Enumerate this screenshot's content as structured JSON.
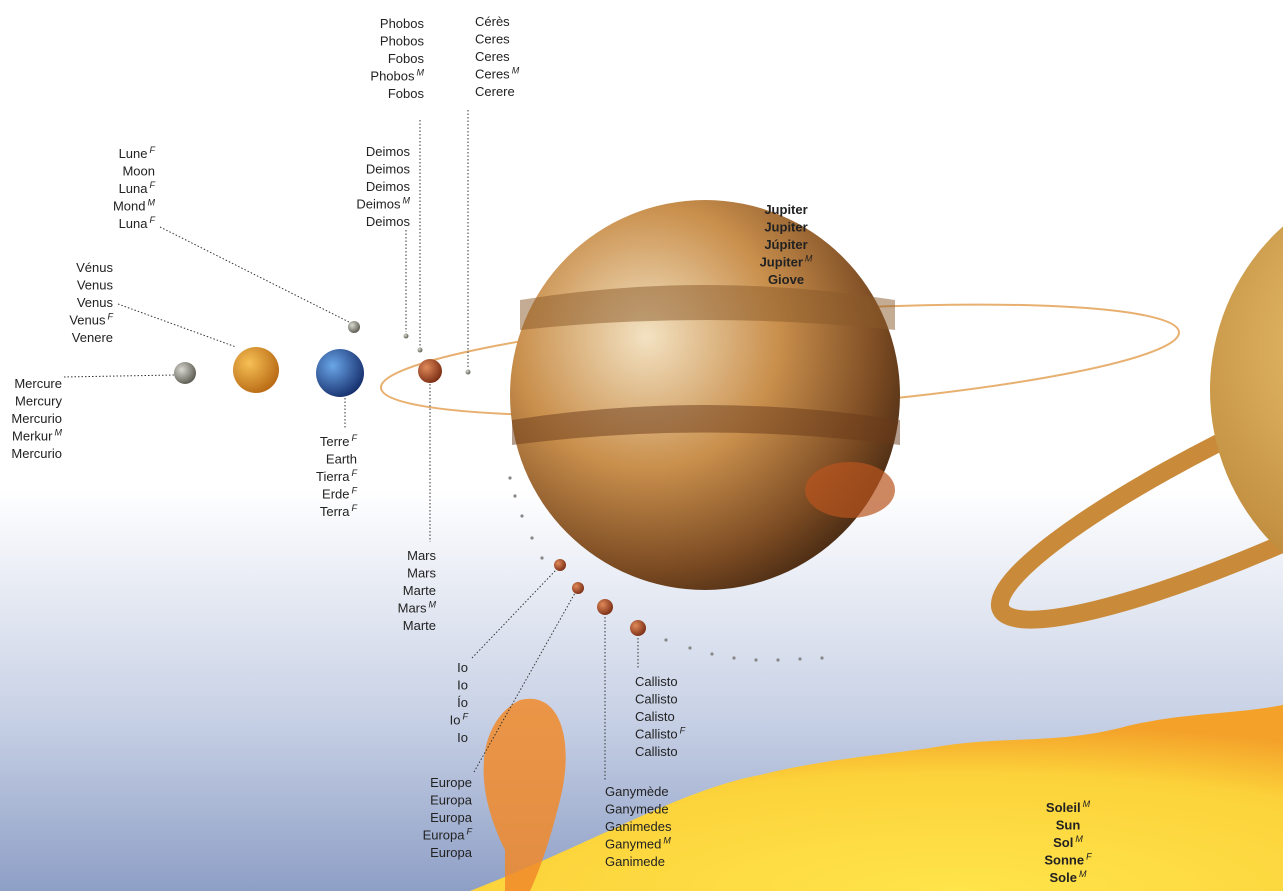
{
  "bodies": [
    {
      "lines": [
        {
          "text": "Mercure"
        },
        {
          "text": "Mercury"
        },
        {
          "text": "Mercurio"
        },
        {
          "text": "Merkur",
          "gender": "M"
        },
        {
          "text": "Mercurio"
        }
      ]
    },
    {
      "lines": [
        {
          "text": "Vénus"
        },
        {
          "text": "Venus"
        },
        {
          "text": "Venus"
        },
        {
          "text": "Venus",
          "gender": "F"
        },
        {
          "text": "Venere"
        }
      ]
    },
    {
      "lines": [
        {
          "text": "Lune",
          "gender": "F"
        },
        {
          "text": "Moon"
        },
        {
          "text": "Luna",
          "gender": "F"
        },
        {
          "text": "Mond",
          "gender": "M"
        },
        {
          "text": "Luna",
          "gender": "F"
        }
      ]
    },
    {
      "lines": [
        {
          "text": "Terre",
          "gender": "F"
        },
        {
          "text": "Earth"
        },
        {
          "text": "Tierra",
          "gender": "F"
        },
        {
          "text": "Erde",
          "gender": "F"
        },
        {
          "text": "Terra",
          "gender": "F"
        }
      ]
    },
    {
      "lines": [
        {
          "text": "Deimos"
        },
        {
          "text": "Deimos"
        },
        {
          "text": "Deimos"
        },
        {
          "text": "Deimos",
          "gender": "M"
        },
        {
          "text": "Deimos"
        }
      ]
    },
    {
      "lines": [
        {
          "text": "Phobos"
        },
        {
          "text": "Phobos"
        },
        {
          "text": "Fobos"
        },
        {
          "text": "Phobos",
          "gender": "M"
        },
        {
          "text": "Fobos"
        }
      ]
    },
    {
      "lines": [
        {
          "text": "Cérès"
        },
        {
          "text": "Ceres"
        },
        {
          "text": "Ceres"
        },
        {
          "text": "Ceres",
          "gender": "M"
        },
        {
          "text": "Cerere"
        }
      ]
    },
    {
      "lines": [
        {
          "text": "Jupiter"
        },
        {
          "text": "Jupiter"
        },
        {
          "text": "Júpiter"
        },
        {
          "text": "Jupiter",
          "gender": "M"
        },
        {
          "text": "Giove"
        }
      ]
    },
    {
      "lines": [
        {
          "text": "Mars"
        },
        {
          "text": "Mars"
        },
        {
          "text": "Marte"
        },
        {
          "text": "Mars",
          "gender": "M"
        },
        {
          "text": "Marte"
        }
      ]
    },
    {
      "lines": [
        {
          "text": "Io"
        },
        {
          "text": "Io"
        },
        {
          "text": "Ío"
        },
        {
          "text": "Io",
          "gender": "F"
        },
        {
          "text": "Io"
        }
      ]
    },
    {
      "lines": [
        {
          "text": "Europe"
        },
        {
          "text": "Europa"
        },
        {
          "text": "Europa"
        },
        {
          "text": "Europa",
          "gender": "F"
        },
        {
          "text": "Europa"
        }
      ]
    },
    {
      "lines": [
        {
          "text": "Ganymède"
        },
        {
          "text": "Ganymede"
        },
        {
          "text": "Ganimedes"
        },
        {
          "text": "Ganymed",
          "gender": "M"
        },
        {
          "text": "Ganimede"
        }
      ]
    },
    {
      "lines": [
        {
          "text": "Callisto"
        },
        {
          "text": "Callisto"
        },
        {
          "text": "Calisto"
        },
        {
          "text": "Callisto",
          "gender": "F"
        },
        {
          "text": "Callisto"
        }
      ]
    },
    {
      "lines": [
        {
          "text": "Soleil",
          "gender": "M"
        },
        {
          "text": "Sun"
        },
        {
          "text": "Sol",
          "gender": "M"
        },
        {
          "text": "Sonne",
          "gender": "F"
        },
        {
          "text": "Sole",
          "gender": "M"
        }
      ]
    }
  ]
}
